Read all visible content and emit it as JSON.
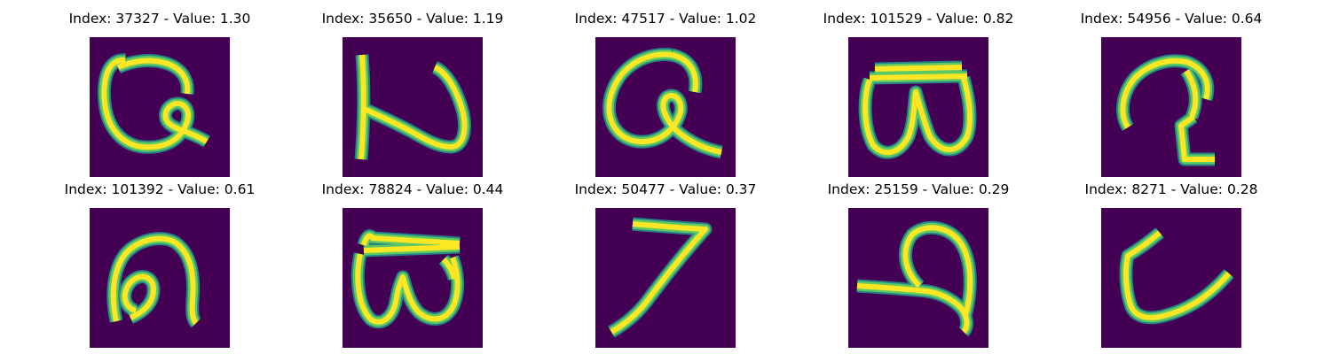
{
  "colors": {
    "background": "#440154",
    "stroke_low": "#21918c",
    "stroke_mid": "#5ec962",
    "stroke_high": "#fde725",
    "text": "#000000"
  },
  "panels": [
    {
      "title": "Index: 37327 - Value: 1.30",
      "glyph": "g-loop-tail"
    },
    {
      "title": "Index: 35650 - Value: 1.19",
      "glyph": "n-shape"
    },
    {
      "title": "Index: 47517 - Value: 1.02",
      "glyph": "g-loop-tail-large"
    },
    {
      "title": "Index: 101529 - Value: 0.82",
      "glyph": "bar-w"
    },
    {
      "title": "Index: 54956 - Value: 0.64",
      "glyph": "hook-squiggle"
    },
    {
      "title": "Index: 101392 - Value: 0.61",
      "glyph": "arch-loop"
    },
    {
      "title": "Index: 78824 - Value: 0.44",
      "glyph": "bar-w-small"
    },
    {
      "title": "Index: 50477 - Value: 0.37",
      "glyph": "seven"
    },
    {
      "title": "Index: 25159 - Value: 0.29",
      "glyph": "loop-stroke"
    },
    {
      "title": "Index: 8271 - Value: 0.28",
      "glyph": "hook-slant"
    }
  ]
}
